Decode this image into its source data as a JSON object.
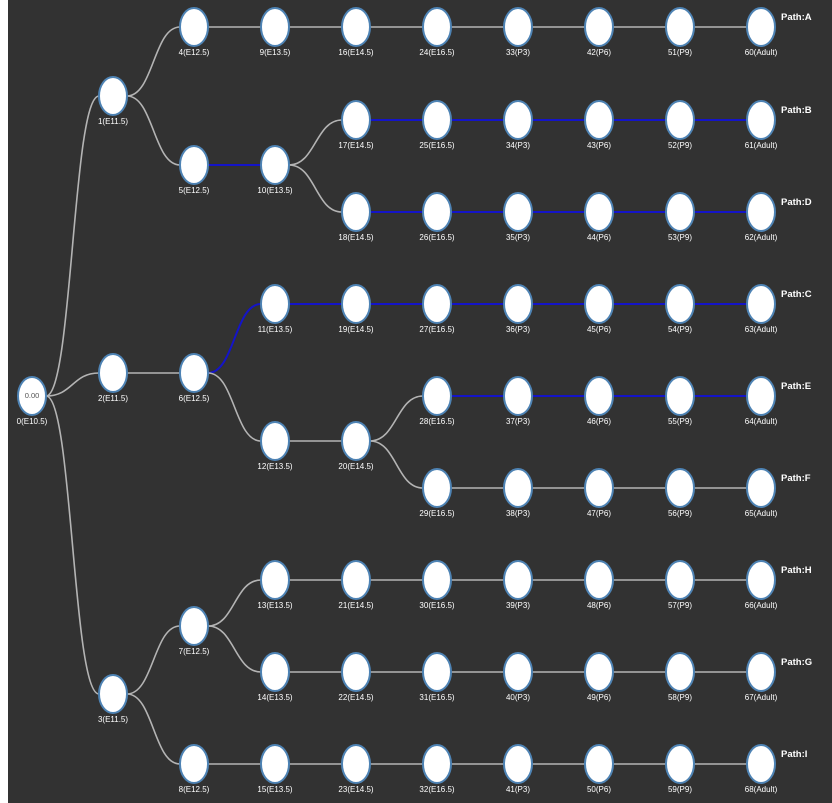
{
  "colors": {
    "background": "#323232",
    "node_fill": "#ffffff",
    "node_stroke": "#4e83b4",
    "edge_default": "#b4b4b4",
    "edge_highlight": "#1414c8",
    "label": "#ffffff"
  },
  "tree": {
    "root_value": "0.00",
    "nodes": [
      {
        "id": 0,
        "label": "0(E10.5)"
      },
      {
        "id": 1,
        "label": "1(E11.5)"
      },
      {
        "id": 2,
        "label": "2(E11.5)"
      },
      {
        "id": 3,
        "label": "3(E11.5)"
      },
      {
        "id": 4,
        "label": "4(E12.5)"
      },
      {
        "id": 5,
        "label": "5(E12.5)"
      },
      {
        "id": 6,
        "label": "6(E12.5)"
      },
      {
        "id": 7,
        "label": "7(E12.5)"
      },
      {
        "id": 8,
        "label": "8(E12.5)"
      },
      {
        "id": 9,
        "label": "9(E13.5)"
      },
      {
        "id": 10,
        "label": "10(E13.5)"
      },
      {
        "id": 11,
        "label": "11(E13.5)"
      },
      {
        "id": 12,
        "label": "12(E13.5)"
      },
      {
        "id": 13,
        "label": "13(E13.5)"
      },
      {
        "id": 14,
        "label": "14(E13.5)"
      },
      {
        "id": 15,
        "label": "15(E13.5)"
      },
      {
        "id": 16,
        "label": "16(E14.5)"
      },
      {
        "id": 17,
        "label": "17(E14.5)"
      },
      {
        "id": 18,
        "label": "18(E14.5)"
      },
      {
        "id": 19,
        "label": "19(E14.5)"
      },
      {
        "id": 20,
        "label": "20(E14.5)"
      },
      {
        "id": 21,
        "label": "21(E14.5)"
      },
      {
        "id": 22,
        "label": "22(E14.5)"
      },
      {
        "id": 23,
        "label": "23(E14.5)"
      },
      {
        "id": 24,
        "label": "24(E16.5)"
      },
      {
        "id": 25,
        "label": "25(E16.5)"
      },
      {
        "id": 26,
        "label": "26(E16.5)"
      },
      {
        "id": 27,
        "label": "27(E16.5)"
      },
      {
        "id": 28,
        "label": "28(E16.5)"
      },
      {
        "id": 29,
        "label": "29(E16.5)"
      },
      {
        "id": 30,
        "label": "30(E16.5)"
      },
      {
        "id": 31,
        "label": "31(E16.5)"
      },
      {
        "id": 32,
        "label": "32(E16.5)"
      },
      {
        "id": 33,
        "label": "33(P3)"
      },
      {
        "id": 34,
        "label": "34(P3)"
      },
      {
        "id": 35,
        "label": "35(P3)"
      },
      {
        "id": 36,
        "label": "36(P3)"
      },
      {
        "id": 37,
        "label": "37(P3)"
      },
      {
        "id": 38,
        "label": "38(P3)"
      },
      {
        "id": 39,
        "label": "39(P3)"
      },
      {
        "id": 40,
        "label": "40(P3)"
      },
      {
        "id": 41,
        "label": "41(P3)"
      },
      {
        "id": 42,
        "label": "42(P6)"
      },
      {
        "id": 43,
        "label": "43(P6)"
      },
      {
        "id": 44,
        "label": "44(P6)"
      },
      {
        "id": 45,
        "label": "45(P6)"
      },
      {
        "id": 46,
        "label": "46(P6)"
      },
      {
        "id": 47,
        "label": "47(P6)"
      },
      {
        "id": 48,
        "label": "48(P6)"
      },
      {
        "id": 49,
        "label": "49(P6)"
      },
      {
        "id": 50,
        "label": "50(P6)"
      },
      {
        "id": 51,
        "label": "51(P9)"
      },
      {
        "id": 52,
        "label": "52(P9)"
      },
      {
        "id": 53,
        "label": "53(P9)"
      },
      {
        "id": 54,
        "label": "54(P9)"
      },
      {
        "id": 55,
        "label": "55(P9)"
      },
      {
        "id": 56,
        "label": "56(P9)"
      },
      {
        "id": 57,
        "label": "57(P9)"
      },
      {
        "id": 58,
        "label": "58(P9)"
      },
      {
        "id": 59,
        "label": "59(P9)"
      },
      {
        "id": 60,
        "label": "60(Adult)",
        "path": "Path:A"
      },
      {
        "id": 61,
        "label": "61(Adult)",
        "path": "Path:B"
      },
      {
        "id": 62,
        "label": "62(Adult)",
        "path": "Path:D"
      },
      {
        "id": 63,
        "label": "63(Adult)",
        "path": "Path:C"
      },
      {
        "id": 64,
        "label": "64(Adult)",
        "path": "Path:E"
      },
      {
        "id": 65,
        "label": "65(Adult)",
        "path": "Path:F"
      },
      {
        "id": 66,
        "label": "66(Adult)",
        "path": "Path:H"
      },
      {
        "id": 67,
        "label": "67(Adult)",
        "path": "Path:G"
      },
      {
        "id": 68,
        "label": "68(Adult)",
        "path": "Path:I"
      }
    ],
    "edges": [
      [
        0,
        1,
        false
      ],
      [
        0,
        2,
        false
      ],
      [
        0,
        3,
        false
      ],
      [
        1,
        4,
        false
      ],
      [
        1,
        5,
        false
      ],
      [
        2,
        6,
        false
      ],
      [
        3,
        7,
        false
      ],
      [
        3,
        8,
        false
      ],
      [
        4,
        9,
        false
      ],
      [
        5,
        10,
        true
      ],
      [
        6,
        11,
        true
      ],
      [
        6,
        12,
        false
      ],
      [
        7,
        13,
        false
      ],
      [
        7,
        14,
        false
      ],
      [
        8,
        15,
        false
      ],
      [
        9,
        16,
        false
      ],
      [
        10,
        17,
        false
      ],
      [
        10,
        18,
        false
      ],
      [
        11,
        19,
        true
      ],
      [
        12,
        20,
        false
      ],
      [
        13,
        21,
        false
      ],
      [
        14,
        22,
        false
      ],
      [
        15,
        23,
        false
      ],
      [
        16,
        24,
        false
      ],
      [
        17,
        25,
        true
      ],
      [
        18,
        26,
        true
      ],
      [
        19,
        27,
        true
      ],
      [
        20,
        28,
        false
      ],
      [
        20,
        29,
        false
      ],
      [
        21,
        30,
        false
      ],
      [
        22,
        31,
        false
      ],
      [
        23,
        32,
        false
      ],
      [
        24,
        33,
        false
      ],
      [
        25,
        34,
        true
      ],
      [
        26,
        35,
        true
      ],
      [
        27,
        36,
        true
      ],
      [
        28,
        37,
        true
      ],
      [
        29,
        38,
        false
      ],
      [
        30,
        39,
        false
      ],
      [
        31,
        40,
        false
      ],
      [
        32,
        41,
        false
      ],
      [
        33,
        42,
        false
      ],
      [
        34,
        43,
        true
      ],
      [
        35,
        44,
        true
      ],
      [
        36,
        45,
        true
      ],
      [
        37,
        46,
        true
      ],
      [
        38,
        47,
        false
      ],
      [
        39,
        48,
        false
      ],
      [
        40,
        49,
        false
      ],
      [
        41,
        50,
        false
      ],
      [
        42,
        51,
        false
      ],
      [
        43,
        52,
        true
      ],
      [
        44,
        53,
        true
      ],
      [
        45,
        54,
        true
      ],
      [
        46,
        55,
        true
      ],
      [
        47,
        56,
        false
      ],
      [
        48,
        57,
        false
      ],
      [
        49,
        58,
        false
      ],
      [
        50,
        59,
        false
      ],
      [
        51,
        60,
        false
      ],
      [
        52,
        61,
        true
      ],
      [
        53,
        62,
        true
      ],
      [
        54,
        63,
        true
      ],
      [
        55,
        64,
        true
      ],
      [
        56,
        65,
        false
      ],
      [
        57,
        66,
        false
      ],
      [
        58,
        67,
        false
      ],
      [
        59,
        68,
        false
      ]
    ]
  }
}
